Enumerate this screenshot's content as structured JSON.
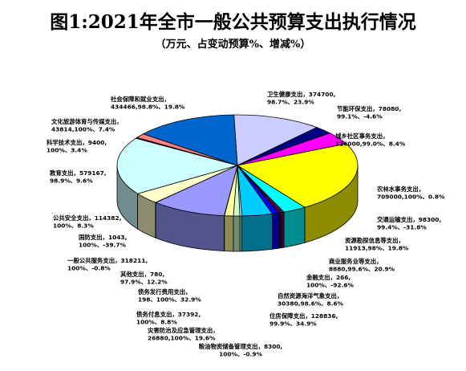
{
  "title": "图1:2021年全市一般公共预算支出执行情况",
  "subtitle": "（万元、占变动预算%、增减%）",
  "chart_data": {
    "type": "pie",
    "title": "图1:2021年全市一般公共预算支出执行情况",
    "subtitle": "（万元、占变动预算%、增减%）",
    "three_d": true,
    "slices": [
      {
        "name": "卫生健康支出",
        "line2": "374700,",
        "line3": "98.7%、23.9%",
        "value": 374700,
        "color": "#ccccff"
      },
      {
        "name": "节能环保支出",
        "line2": "78080,",
        "line3": "99.1%、-4.6%",
        "value": 78080,
        "color": "#000080"
      },
      {
        "name": "城乡社区事务支出",
        "line2": "",
        "line3": "126000,99.0%、8.4%",
        "value": 126000,
        "color": "#ff00ff"
      },
      {
        "name": "农林水事务支出",
        "line2": "",
        "line3": "709000,100%、0.8%",
        "value": 709000,
        "color": "#ffff00"
      },
      {
        "name": "交通运输支出",
        "line2": "98300,",
        "line3": "99.4%、-31.8%",
        "value": 98300,
        "color": "#00ffff"
      },
      {
        "name": "资源勘探信息等支出",
        "line2": "",
        "line3": "11913,98%、19.8%",
        "value": 11913,
        "color": "#800080"
      },
      {
        "name": "商业服务业等支出",
        "line2": "",
        "line3": "8880,99.6%、20.9%",
        "value": 8880,
        "color": "#800000"
      },
      {
        "name": "金融支出",
        "line2": "266,",
        "line3": "100%、-92.6%",
        "value": 266,
        "color": "#008080"
      },
      {
        "name": "自然资源海洋气象支出",
        "line2": "",
        "line3": "30380,98.6%、8.6%",
        "value": 30380,
        "color": "#0000ff"
      },
      {
        "name": "住房保障支出",
        "line2": "128836,",
        "line3": "99.9%、34.9%",
        "value": 128836,
        "color": "#00ccff"
      },
      {
        "name": "粮油物资储备管理支出",
        "line2": "8300,",
        "line3": "100%、-0.9%",
        "value": 8300,
        "color": "#ccffff"
      },
      {
        "name": "灾害防治及应急管理支出",
        "line2": "",
        "line3": "26880,100%、19.6%",
        "value": 26880,
        "color": "#ccffcc"
      },
      {
        "name": "债务付息支出",
        "line2": "37392,",
        "line3": "100%、8.8%",
        "value": 37392,
        "color": "#ffff99"
      },
      {
        "name": "债务发行费用支出",
        "line2": "",
        "line3": "198、100%、32.9%",
        "value": 198,
        "color": "#99ccff"
      },
      {
        "name": "其他支出",
        "line2": "780,",
        "line3": "97.9%、12.2%",
        "value": 780,
        "color": "#ff99cc"
      },
      {
        "name": "一般公共服务支出",
        "line2": "318211,",
        "line3": "100%、-0.8%",
        "value": 318211,
        "color": "#9999ff"
      },
      {
        "name": "国防支出",
        "line2": "1043,",
        "line3": "100%、-39.7%",
        "value": 1043,
        "color": "#993366"
      },
      {
        "name": "公共安全支出",
        "line2": "114382,",
        "line3": "100%、8.3%",
        "value": 114382,
        "color": "#ffffcc"
      },
      {
        "name": "教育支出",
        "line2": "579167,",
        "line3": "98.9%、9.6%",
        "value": 579167,
        "color": "#ccffff"
      },
      {
        "name": "科学技术支出",
        "line2": "9400,",
        "line3": "100%、3.4%",
        "value": 9400,
        "color": "#660066"
      },
      {
        "name": "文化旅游体育与传媒支出",
        "line2": "",
        "line3": "43814,100%、7.4%",
        "value": 43814,
        "color": "#ff8080"
      },
      {
        "name": "社会保障和就业支出",
        "line2": "",
        "line3": "434466,98.8%、19.8%",
        "value": 434466,
        "color": "#0066cc"
      }
    ]
  }
}
